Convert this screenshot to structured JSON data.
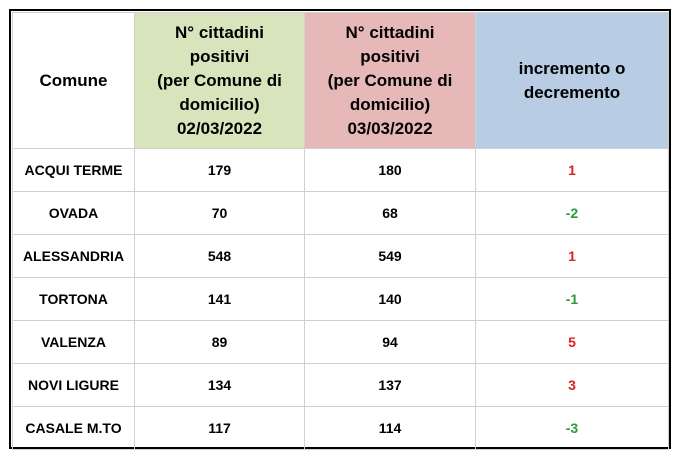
{
  "table": {
    "headers": {
      "comune": "Comune",
      "day1_lines": [
        "N° cittadini",
        "positivi",
        "(per Comune di",
        "domicilio)",
        "02/03/2022"
      ],
      "day2_lines": [
        "N° cittadini",
        "positivi",
        "(per Comune di",
        "domicilio)",
        "03/03/2022"
      ],
      "variation_lines": [
        "incremento o",
        "decremento"
      ]
    },
    "rows": [
      {
        "comune": "ACQUI TERME",
        "day1": "179",
        "day2": "180",
        "variation": "1"
      },
      {
        "comune": "OVADA",
        "day1": "70",
        "day2": "68",
        "variation": "-2"
      },
      {
        "comune": "ALESSANDRIA",
        "day1": "548",
        "day2": "549",
        "variation": "1"
      },
      {
        "comune": "TORTONA",
        "day1": "141",
        "day2": "140",
        "variation": "-1"
      },
      {
        "comune": "VALENZA",
        "day1": "89",
        "day2": "94",
        "variation": "5"
      },
      {
        "comune": "NOVI LIGURE",
        "day1": "134",
        "day2": "137",
        "variation": "3"
      },
      {
        "comune": "CASALE M.TO",
        "day1": "117",
        "day2": "114",
        "variation": "-3"
      }
    ]
  },
  "colors": {
    "header_day1": "#d8e4bc",
    "header_day2": "#e6b8b7",
    "header_variation": "#b8cce4",
    "increase": "#e02020",
    "decrease": "#2a9a3a"
  }
}
